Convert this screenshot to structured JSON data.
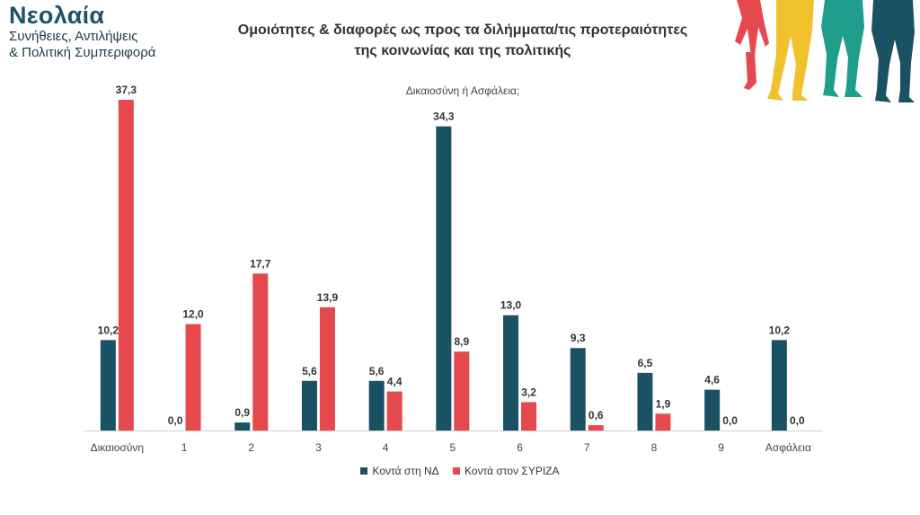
{
  "brand": {
    "title": "Νεολαία",
    "subtitle_1": "Συνήθειες, Αντιλήψεις",
    "subtitle_2": "& Πολιτική Συμπεριφορά"
  },
  "colors": {
    "nd": "#1a5263",
    "syriza": "#e5484d",
    "deco": [
      "#e5484d",
      "#f2c12e",
      "#1f9e8c",
      "#1a5263"
    ]
  },
  "chart_data": {
    "type": "bar",
    "title_line1": "Ομοιότητες & διαφορές ως προς τα διλήμματα/τις προτεραιότητες",
    "title_line2": "της κοινωνίας και της πολιτικής",
    "subtitle": "Δικαιοσύνη ή Ασφάλεια;",
    "categories": [
      "Δικαιοσύνη",
      "1",
      "2",
      "3",
      "4",
      "5",
      "6",
      "7",
      "8",
      "9",
      "Ασφάλεια"
    ],
    "series": [
      {
        "name": "Κοντά στη ΝΔ",
        "values": [
          10.2,
          0.0,
          0.9,
          5.6,
          5.6,
          34.3,
          13.0,
          9.3,
          6.5,
          4.6,
          10.2
        ]
      },
      {
        "name": "Κοντά στον ΣΥΡΙΖΑ",
        "values": [
          37.3,
          12.0,
          17.7,
          13.9,
          4.4,
          8.9,
          3.2,
          0.6,
          1.9,
          0.0,
          0.0
        ]
      }
    ],
    "ylim": [
      0,
      37.3
    ],
    "grid": false,
    "legend_position": "bottom"
  }
}
